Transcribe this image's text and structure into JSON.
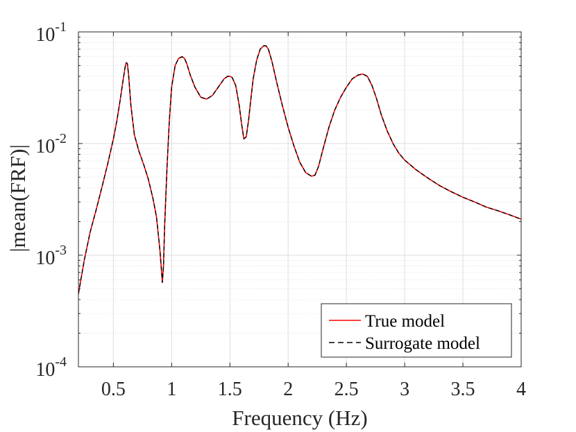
{
  "chart_data": {
    "type": "line",
    "title": "",
    "xlabel": "Frequency (Hz)",
    "ylabel": "|mean(FRF)|",
    "xlim": [
      0.2,
      4
    ],
    "ylim": [
      0.0001,
      0.1
    ],
    "yscale": "log",
    "grid": true,
    "xticks": [
      0.5,
      1,
      1.5,
      2,
      2.5,
      3,
      3.5,
      4
    ],
    "xtick_labels": [
      "0.5",
      "1",
      "1.5",
      "2",
      "2.5",
      "3",
      "3.5",
      "4"
    ],
    "yticks": [
      {
        "value": 0.1,
        "base": "10",
        "exp": "-1"
      },
      {
        "value": 0.01,
        "base": "10",
        "exp": "-2"
      },
      {
        "value": 0.001,
        "base": "10",
        "exp": "-3"
      },
      {
        "value": 0.0001,
        "base": "10",
        "exp": "-4"
      }
    ],
    "legend_position": "bottom-right",
    "series": [
      {
        "name": "True model",
        "color": "#ff0000",
        "dash": "solid",
        "x": [
          0.2,
          0.25,
          0.3,
          0.35,
          0.4,
          0.45,
          0.5,
          0.53,
          0.56,
          0.58,
          0.6,
          0.61,
          0.62,
          0.63,
          0.65,
          0.68,
          0.72,
          0.76,
          0.8,
          0.84,
          0.87,
          0.9,
          0.91,
          0.92,
          0.93,
          0.94,
          0.96,
          0.98,
          1.0,
          1.03,
          1.06,
          1.09,
          1.11,
          1.13,
          1.16,
          1.2,
          1.25,
          1.3,
          1.35,
          1.4,
          1.45,
          1.48,
          1.5,
          1.52,
          1.55,
          1.58,
          1.6,
          1.62,
          1.64,
          1.66,
          1.68,
          1.7,
          1.73,
          1.76,
          1.79,
          1.81,
          1.83,
          1.86,
          1.9,
          1.95,
          2.0,
          2.05,
          2.1,
          2.15,
          2.2,
          2.23,
          2.26,
          2.3,
          2.35,
          2.4,
          2.45,
          2.5,
          2.55,
          2.6,
          2.64,
          2.68,
          2.72,
          2.76,
          2.8,
          2.85,
          2.9,
          2.95,
          3.0,
          3.1,
          3.2,
          3.3,
          3.4,
          3.5,
          3.6,
          3.7,
          3.8,
          3.9,
          4.0
        ],
        "y": [
          0.00045,
          0.0009,
          0.0016,
          0.0025,
          0.004,
          0.0065,
          0.011,
          0.016,
          0.025,
          0.035,
          0.048,
          0.053,
          0.052,
          0.042,
          0.022,
          0.012,
          0.0085,
          0.0065,
          0.0048,
          0.0032,
          0.0022,
          0.0011,
          0.0008,
          0.00057,
          0.0008,
          0.0018,
          0.006,
          0.016,
          0.032,
          0.05,
          0.058,
          0.06,
          0.058,
          0.052,
          0.041,
          0.032,
          0.026,
          0.025,
          0.027,
          0.032,
          0.038,
          0.04,
          0.04,
          0.039,
          0.033,
          0.022,
          0.015,
          0.011,
          0.0115,
          0.016,
          0.025,
          0.038,
          0.056,
          0.07,
          0.075,
          0.075,
          0.07,
          0.055,
          0.036,
          0.022,
          0.014,
          0.0095,
          0.0068,
          0.0055,
          0.0051,
          0.0052,
          0.0062,
          0.009,
          0.014,
          0.02,
          0.026,
          0.032,
          0.038,
          0.041,
          0.042,
          0.04,
          0.033,
          0.025,
          0.018,
          0.013,
          0.01,
          0.0082,
          0.0071,
          0.0058,
          0.0049,
          0.0042,
          0.0037,
          0.0033,
          0.003,
          0.0027,
          0.0025,
          0.0023,
          0.0021
        ]
      },
      {
        "name": "Surrogate model",
        "color": "#000000",
        "dash": "dashed",
        "x": [
          0.2,
          0.25,
          0.3,
          0.35,
          0.4,
          0.45,
          0.5,
          0.53,
          0.56,
          0.58,
          0.6,
          0.61,
          0.62,
          0.63,
          0.65,
          0.68,
          0.72,
          0.76,
          0.8,
          0.84,
          0.87,
          0.9,
          0.91,
          0.92,
          0.93,
          0.94,
          0.96,
          0.98,
          1.0,
          1.03,
          1.06,
          1.09,
          1.11,
          1.13,
          1.16,
          1.2,
          1.25,
          1.3,
          1.35,
          1.4,
          1.45,
          1.48,
          1.5,
          1.52,
          1.55,
          1.58,
          1.6,
          1.62,
          1.64,
          1.66,
          1.68,
          1.7,
          1.73,
          1.76,
          1.79,
          1.81,
          1.83,
          1.86,
          1.9,
          1.95,
          2.0,
          2.05,
          2.1,
          2.15,
          2.2,
          2.23,
          2.26,
          2.3,
          2.35,
          2.4,
          2.45,
          2.5,
          2.55,
          2.6,
          2.64,
          2.68,
          2.72,
          2.76,
          2.8,
          2.85,
          2.9,
          2.95,
          3.0,
          3.1,
          3.2,
          3.3,
          3.4,
          3.5,
          3.6,
          3.7,
          3.8,
          3.9,
          4.0
        ],
        "y": [
          0.00045,
          0.0009,
          0.0016,
          0.0025,
          0.004,
          0.0065,
          0.011,
          0.016,
          0.025,
          0.035,
          0.048,
          0.053,
          0.052,
          0.042,
          0.022,
          0.012,
          0.0085,
          0.0065,
          0.0048,
          0.0032,
          0.0022,
          0.0011,
          0.0008,
          0.00057,
          0.0008,
          0.0018,
          0.006,
          0.016,
          0.032,
          0.05,
          0.058,
          0.06,
          0.058,
          0.052,
          0.041,
          0.032,
          0.026,
          0.025,
          0.027,
          0.032,
          0.038,
          0.04,
          0.04,
          0.039,
          0.033,
          0.022,
          0.015,
          0.011,
          0.0115,
          0.016,
          0.025,
          0.038,
          0.056,
          0.07,
          0.075,
          0.075,
          0.07,
          0.055,
          0.036,
          0.022,
          0.014,
          0.0095,
          0.0068,
          0.0055,
          0.0051,
          0.0052,
          0.0062,
          0.009,
          0.014,
          0.02,
          0.026,
          0.032,
          0.038,
          0.041,
          0.042,
          0.04,
          0.033,
          0.025,
          0.018,
          0.013,
          0.01,
          0.0082,
          0.0071,
          0.0058,
          0.0049,
          0.0042,
          0.0037,
          0.0033,
          0.003,
          0.0027,
          0.0025,
          0.0023,
          0.0021
        ]
      }
    ]
  }
}
